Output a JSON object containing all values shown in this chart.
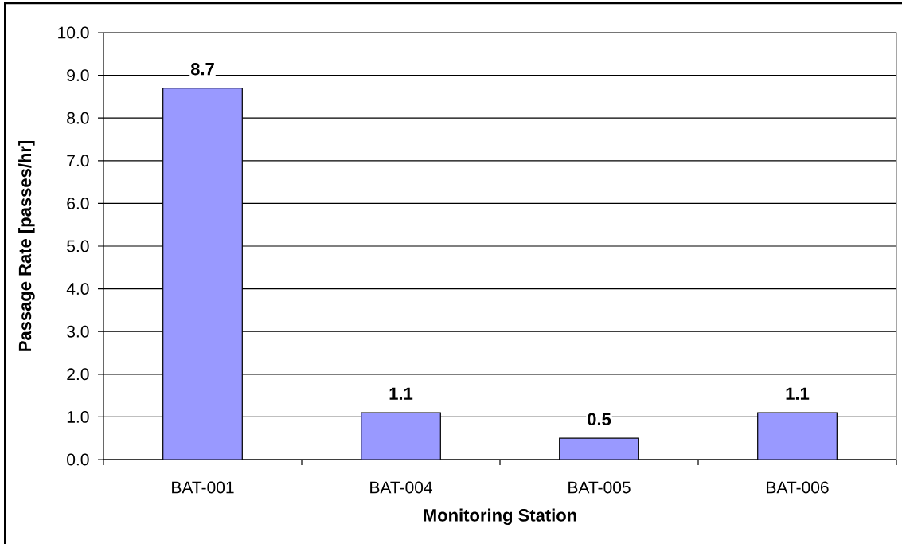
{
  "chart_data": {
    "type": "bar",
    "xlabel": "Monitoring Station",
    "ylabel": "Passage Rate [passes/hr]",
    "categories": [
      "BAT-001",
      "BAT-004",
      "BAT-005",
      "BAT-006"
    ],
    "values": [
      8.7,
      1.1,
      0.5,
      1.1
    ],
    "color": "#9999ff",
    "ylim": [
      0,
      10
    ],
    "yticks": [
      {
        "value": 0,
        "label": "0.0"
      },
      {
        "value": 1,
        "label": "1.0"
      },
      {
        "value": 2,
        "label": "2.0"
      },
      {
        "value": 3,
        "label": "3.0"
      },
      {
        "value": 4,
        "label": "4.0"
      },
      {
        "value": 5,
        "label": "5.0"
      },
      {
        "value": 6,
        "label": "6.0"
      },
      {
        "value": 7,
        "label": "7.0"
      },
      {
        "value": 8,
        "label": "8.0"
      },
      {
        "value": 9,
        "label": "9.0"
      },
      {
        "value": 10,
        "label": "10.0"
      }
    ],
    "grid": "y",
    "data_labels": true
  }
}
